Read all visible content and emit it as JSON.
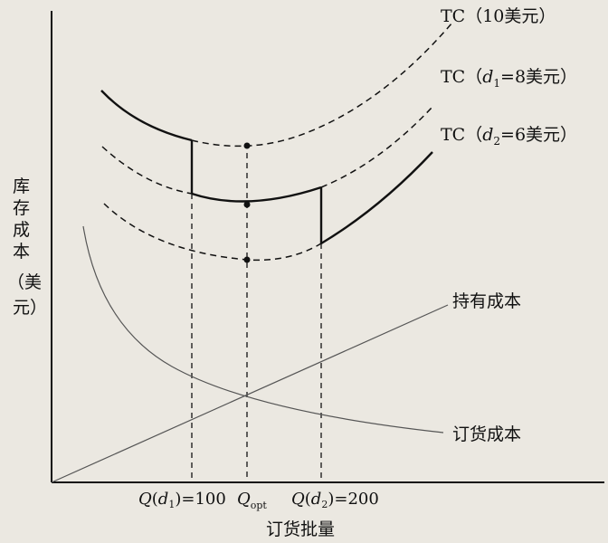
{
  "diagram": {
    "y_axis_title_lines": [
      "库",
      "存",
      "成",
      "本",
      "（美",
      "元）"
    ],
    "x_axis_title": "订货批量",
    "curve_labels": {
      "tc_10": "TC（10美元）",
      "tc_8_prefix": "TC（",
      "tc_8_var": "d",
      "tc_8_sub": "1",
      "tc_8_suffix": "=8美元）",
      "tc_6_prefix": "TC（",
      "tc_6_var": "d",
      "tc_6_sub": "2",
      "tc_6_suffix": "=6美元）",
      "holding_cost": "持有成本",
      "ordering_cost": "订货成本"
    },
    "x_ticks": {
      "q1": {
        "q": "Q",
        "open": "(",
        "d": "d",
        "sub": "1",
        "close": ")",
        "value": "=100"
      },
      "qopt": {
        "q": "Q",
        "sub": "opt"
      },
      "q2": {
        "q": "Q",
        "open": "(",
        "d": "d",
        "sub": "2",
        "close": ")",
        "value": "=200"
      }
    },
    "colors": {
      "background": "#ebe8e1",
      "ink": "#111111",
      "thin_line": "#555555"
    }
  }
}
